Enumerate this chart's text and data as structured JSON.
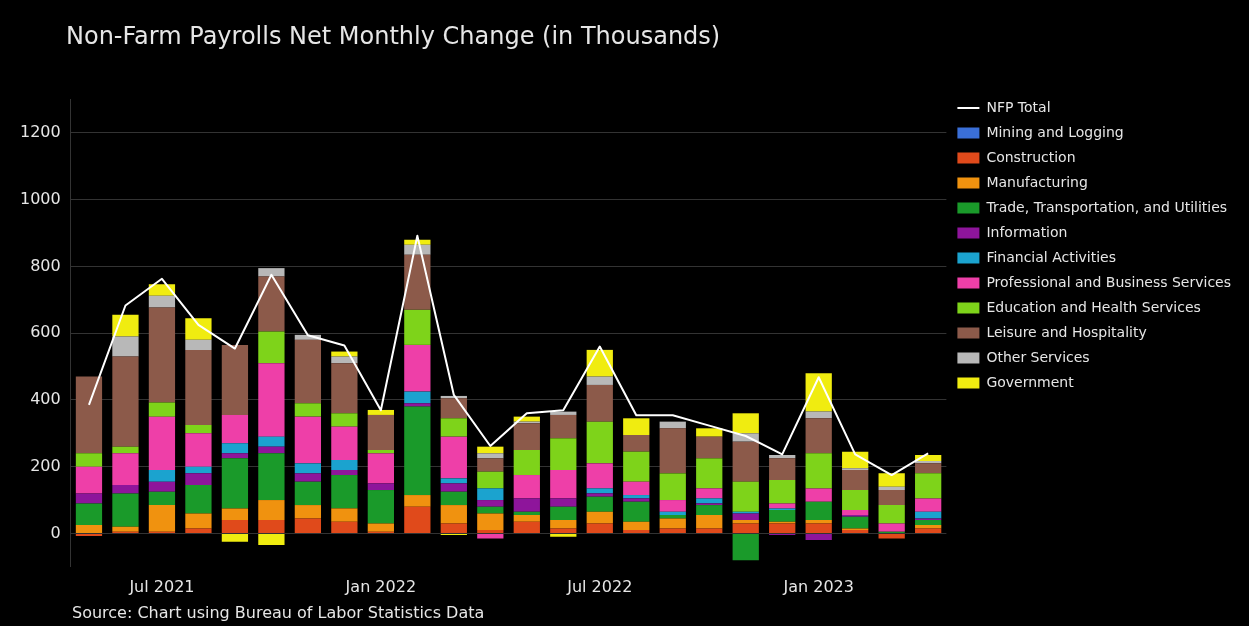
{
  "chart_data": {
    "type": "bar",
    "title": "Non-Farm Payrolls Net Monthly Change (in Thousands)",
    "categories": [
      null,
      null,
      "Jul 2021",
      null,
      null,
      null,
      null,
      null,
      "Jan 2022",
      null,
      null,
      null,
      null,
      null,
      "Jul 2022",
      null,
      null,
      null,
      null,
      null,
      "Jan 2023",
      null,
      null,
      null
    ],
    "stacked": true,
    "grid": "y",
    "legend": "right",
    "marker": "none",
    "ylim": [
      -100,
      1300
    ],
    "yticks": [
      0,
      200,
      400,
      600,
      800,
      1000,
      1200
    ],
    "annotations": [
      "Source: Chart using Bureau of Labor Statistics Data"
    ],
    "series": [
      {
        "name": "NFP Total",
        "type": "line",
        "color": "#ffffff",
        "values": [
          385,
          683,
          763,
          625,
          554,
          775,
          594,
          563,
          369,
          892,
          415,
          262,
          360,
          369,
          560,
          354,
          354,
          323,
          292,
          237,
          468,
          237,
          175,
          240
        ]
      },
      {
        "name": "Mining and Logging",
        "color": "#3a6fd8",
        "values": [
          0,
          0,
          0,
          0,
          0,
          0,
          0,
          0,
          0,
          0,
          0,
          0,
          0,
          0,
          0,
          0,
          0,
          0,
          0,
          0,
          0,
          0,
          0,
          0
        ]
      },
      {
        "name": "Construction",
        "color": "#e04a1b",
        "values": [
          -8,
          5,
          5,
          15,
          40,
          40,
          45,
          35,
          5,
          80,
          30,
          10,
          35,
          15,
          30,
          10,
          15,
          15,
          30,
          30,
          30,
          10,
          -15,
          15
        ]
      },
      {
        "name": "Manufacturing",
        "color": "#f0920f",
        "values": [
          25,
          15,
          80,
          45,
          35,
          60,
          40,
          40,
          25,
          35,
          55,
          50,
          20,
          25,
          35,
          25,
          30,
          40,
          10,
          5,
          10,
          5,
          0,
          10
        ]
      },
      {
        "name": "Trade, Transportation, and Utilities",
        "color": "#1a9a2a",
        "values": [
          65,
          100,
          40,
          85,
          150,
          140,
          70,
          100,
          100,
          265,
          40,
          20,
          10,
          40,
          45,
          60,
          10,
          30,
          -80,
          35,
          55,
          35,
          5,
          15
        ]
      },
      {
        "name": "Information",
        "color": "#8e159b",
        "values": [
          30,
          25,
          30,
          35,
          15,
          20,
          25,
          15,
          20,
          10,
          25,
          20,
          40,
          25,
          10,
          10,
          0,
          5,
          20,
          -5,
          -20,
          5,
          0,
          5
        ]
      },
      {
        "name": "Financial Activities",
        "color": "#1ba3cf",
        "values": [
          0,
          0,
          35,
          20,
          30,
          30,
          30,
          30,
          0,
          35,
          15,
          35,
          0,
          0,
          15,
          10,
          10,
          15,
          5,
          5,
          0,
          0,
          0,
          20
        ]
      },
      {
        "name": "Professional and Business Services",
        "color": "#ee3fa8",
        "values": [
          80,
          95,
          160,
          100,
          85,
          220,
          140,
          100,
          90,
          140,
          125,
          -15,
          70,
          85,
          75,
          40,
          35,
          30,
          0,
          15,
          40,
          15,
          25,
          40
        ]
      },
      {
        "name": "Education and Health Services",
        "color": "#7ed31a",
        "values": [
          40,
          20,
          42,
          25,
          0,
          95,
          40,
          40,
          10,
          105,
          55,
          50,
          75,
          95,
          125,
          90,
          80,
          90,
          90,
          70,
          105,
          60,
          55,
          75
        ]
      },
      {
        "name": "Leisure and Hospitality",
        "color": "#8c5a4a",
        "values": [
          230,
          270,
          285,
          225,
          210,
          165,
          190,
          150,
          105,
          165,
          60,
          40,
          80,
          70,
          110,
          50,
          135,
          65,
          120,
          65,
          105,
          60,
          45,
          30
        ]
      },
      {
        "name": "Other Services",
        "color": "#b8b8b8",
        "values": [
          0,
          60,
          35,
          30,
          0,
          25,
          15,
          20,
          0,
          30,
          7,
          15,
          5,
          10,
          25,
          0,
          20,
          0,
          25,
          10,
          20,
          5,
          10,
          7
        ]
      },
      {
        "name": "Government",
        "color": "#f0ec10",
        "values": [
          0,
          65,
          35,
          65,
          -25,
          -35,
          0,
          15,
          15,
          15,
          -5,
          20,
          15,
          -10,
          80,
          50,
          0,
          25,
          60,
          0,
          115,
          50,
          40,
          18
        ]
      }
    ]
  }
}
